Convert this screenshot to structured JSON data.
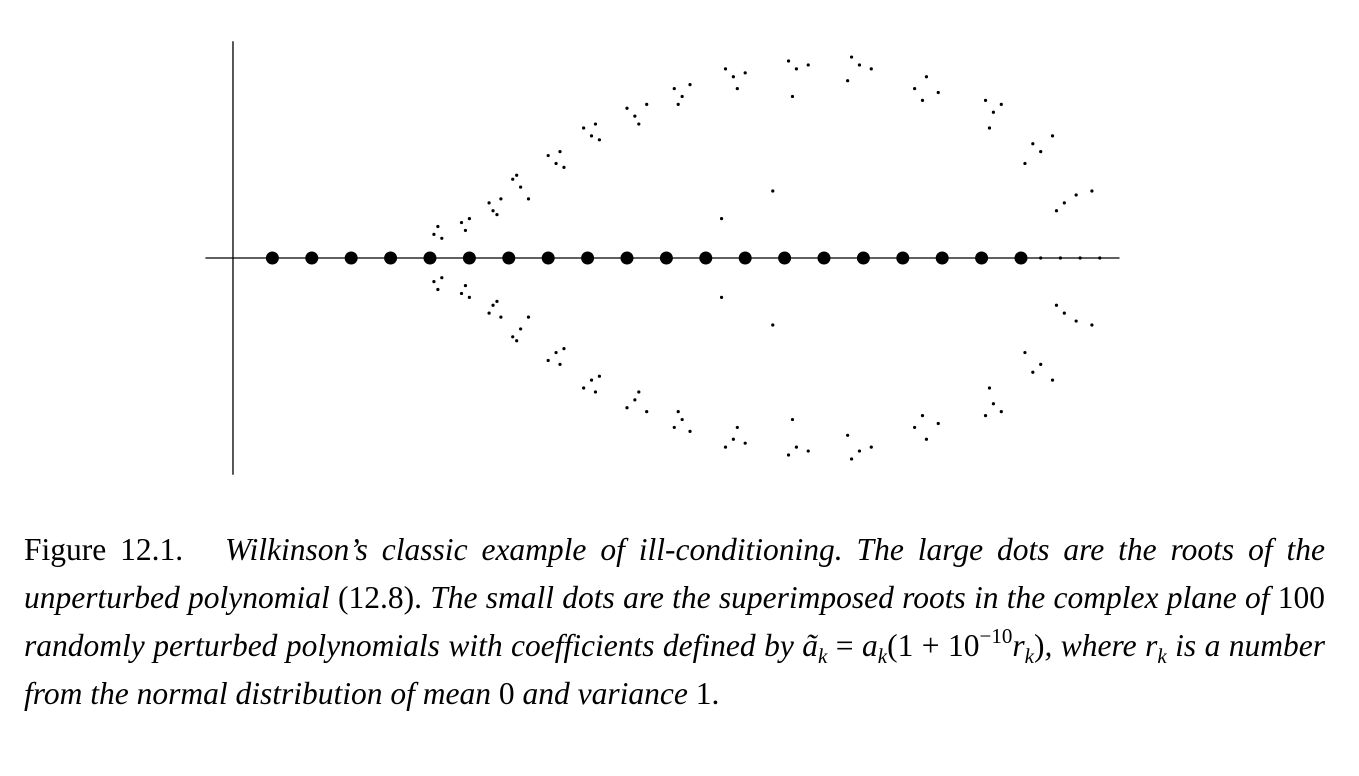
{
  "chart_data": {
    "type": "scatter",
    "xlim": [
      -0.7,
      22.5
    ],
    "ylim": [
      -5.5,
      5.5
    ],
    "series": [
      {
        "color": "#000000",
        "size": "large",
        "x": [
          1,
          2,
          3,
          4,
          5,
          6,
          7,
          8,
          9,
          10,
          11,
          12,
          13,
          14,
          15,
          16,
          17,
          18,
          19,
          20
        ],
        "y": [
          0,
          0,
          0,
          0,
          0,
          0,
          0,
          0,
          0,
          0,
          0,
          0,
          0,
          0,
          0,
          0,
          0,
          0,
          0,
          0
        ]
      },
      {
        "color": "#000000",
        "size": "small",
        "x": [
          5.1,
          5.2,
          5.3,
          5.8,
          5.9,
          6.0,
          6.5,
          6.6,
          6.8,
          6.7,
          7.1,
          7.3,
          7.2,
          7.5,
          8.0,
          8.2,
          8.4,
          8.3,
          8.9,
          9.1,
          9.3,
          9.2,
          10.0,
          10.2,
          10.5,
          10.3,
          11.2,
          11.4,
          11.6,
          11.3,
          12.5,
          12.7,
          13.0,
          12.8,
          14.1,
          14.3,
          14.6,
          14.2,
          15.7,
          15.9,
          16.2,
          15.6,
          17.3,
          17.6,
          17.9,
          17.5,
          19.1,
          19.3,
          19.5,
          19.2,
          20.3,
          20.5,
          20.8,
          20.1,
          21.1,
          21.4,
          21.8,
          20.9,
          13.7,
          12.4,
          5.1,
          5.2,
          5.3,
          5.8,
          5.9,
          6.0,
          6.5,
          6.6,
          6.8,
          6.7,
          7.1,
          7.3,
          7.2,
          7.5,
          8.0,
          8.2,
          8.4,
          8.3,
          8.9,
          9.1,
          9.3,
          9.2,
          10.0,
          10.2,
          10.5,
          10.3,
          11.2,
          11.4,
          11.6,
          11.3,
          12.5,
          12.7,
          13.0,
          12.8,
          14.1,
          14.3,
          14.6,
          14.2,
          15.7,
          15.9,
          16.2,
          15.6,
          17.3,
          17.6,
          17.9,
          17.5,
          19.1,
          19.3,
          19.5,
          19.2,
          20.3,
          20.5,
          20.8,
          20.1,
          21.1,
          21.4,
          21.8,
          20.9,
          13.7,
          12.4,
          20.5,
          21.0,
          21.5,
          22.0
        ],
        "y": [
          0.6,
          0.8,
          0.5,
          0.9,
          0.7,
          1.0,
          1.4,
          1.2,
          1.5,
          1.1,
          2.0,
          1.8,
          2.1,
          1.5,
          2.6,
          2.4,
          2.3,
          2.7,
          3.3,
          3.1,
          3.0,
          3.4,
          3.8,
          3.6,
          3.9,
          3.4,
          4.3,
          4.1,
          4.4,
          3.9,
          4.8,
          4.6,
          4.7,
          4.3,
          5.0,
          4.8,
          4.9,
          4.1,
          5.1,
          4.9,
          4.8,
          4.5,
          4.3,
          4.6,
          4.2,
          4.0,
          4.0,
          3.7,
          3.9,
          3.3,
          2.9,
          2.7,
          3.1,
          2.4,
          1.4,
          1.6,
          1.7,
          1.2,
          1.7,
          1.0,
          -0.6,
          -0.8,
          -0.5,
          -0.9,
          -0.7,
          -1.0,
          -1.4,
          -1.2,
          -1.5,
          -1.1,
          -2.0,
          -1.8,
          -2.1,
          -1.5,
          -2.6,
          -2.4,
          -2.3,
          -2.7,
          -3.3,
          -3.1,
          -3.0,
          -3.4,
          -3.8,
          -3.6,
          -3.9,
          -3.4,
          -4.3,
          -4.1,
          -4.4,
          -3.9,
          -4.8,
          -4.6,
          -4.7,
          -4.3,
          -5.0,
          -4.8,
          -4.9,
          -4.1,
          -5.1,
          -4.9,
          -4.8,
          -4.5,
          -4.3,
          -4.6,
          -4.2,
          -4.0,
          -4.0,
          -3.7,
          -3.9,
          -3.3,
          -2.9,
          -2.7,
          -3.1,
          -2.4,
          -1.4,
          -1.6,
          -1.7,
          -1.2,
          -1.7,
          -1.0,
          0,
          0,
          0,
          0
        ]
      }
    ]
  },
  "caption": {
    "label": "Figure 12.1.",
    "segments": [
      "Wilkinson’s classic example of ill-conditioning. The large dots are the roots of the unperturbed polynomial ",
      "(12.8).",
      " The small dots are the superimposed roots in the complex plane of ",
      "100",
      " randomly perturbed polynomials with coefficients defined by ",
      "ã",
      "k",
      " = ",
      "a",
      "k",
      "(1 + 10",
      "−10",
      "r",
      "k",
      ")",
      ", where ",
      "r",
      "k",
      " is a number from the normal distribution of mean ",
      "0",
      " and variance ",
      "1",
      "."
    ]
  }
}
